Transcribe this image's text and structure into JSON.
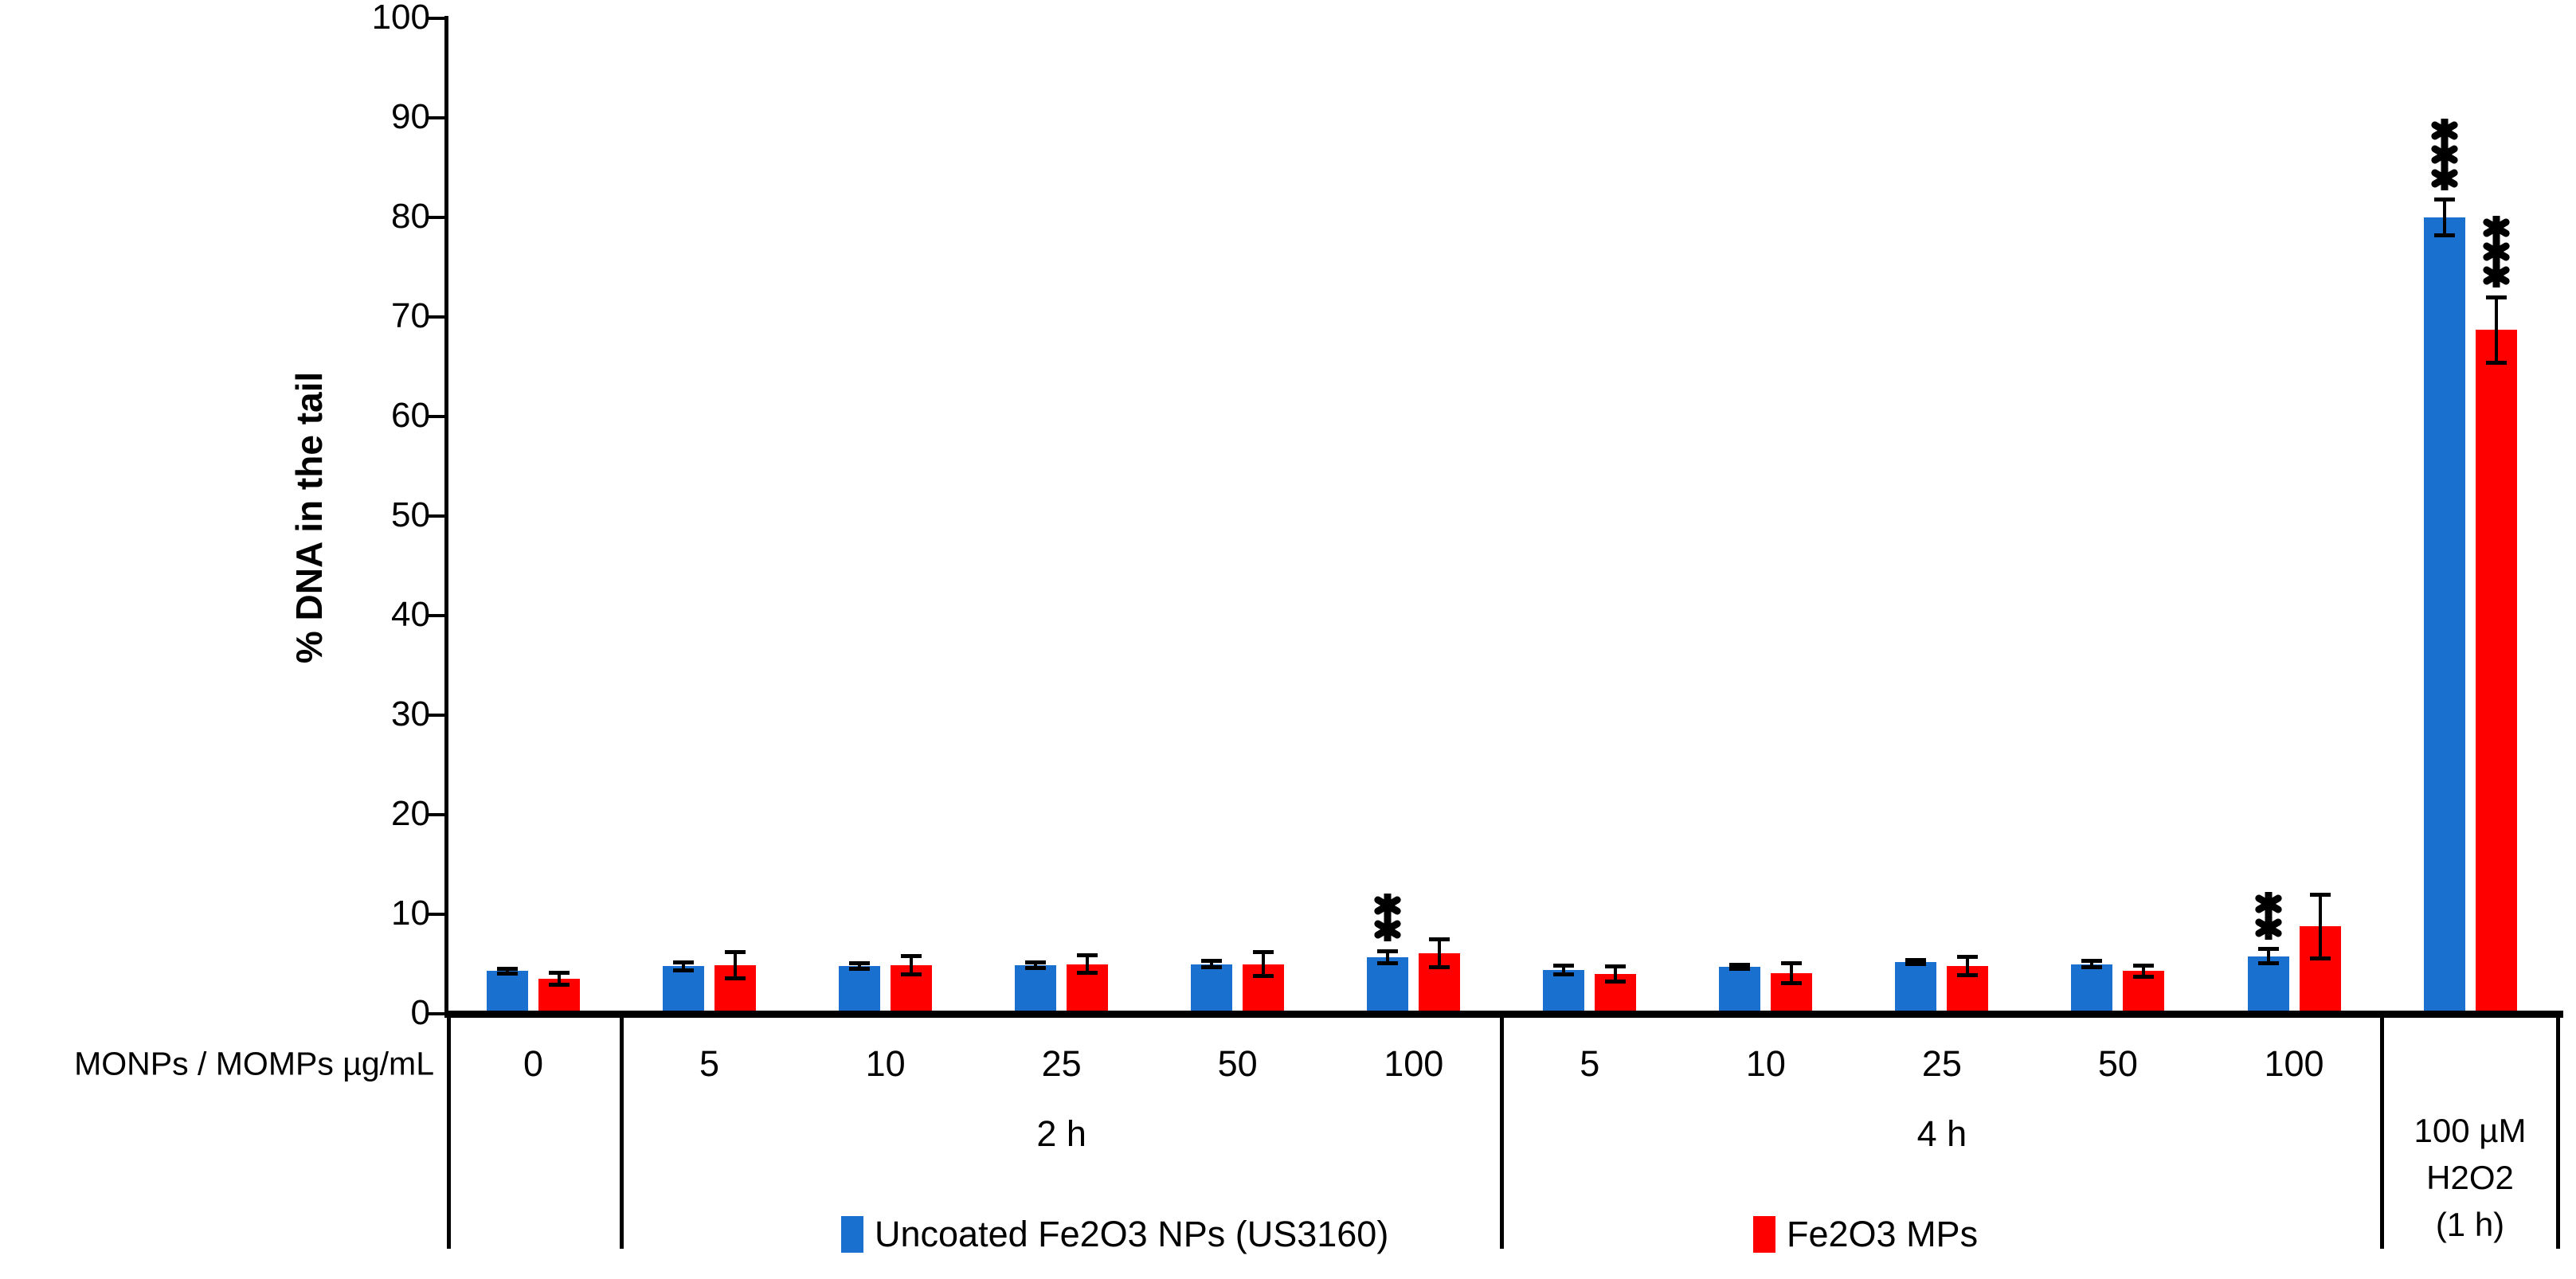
{
  "chart_data": {
    "type": "bar",
    "title": "",
    "ylabel": "% DNA in the tail",
    "xlabel": "MONPs / MOMPs µg/mL",
    "ylim": [
      0,
      100
    ],
    "ytick_step": 10,
    "ytick_labels": [
      "0",
      "10",
      "20",
      "30",
      "40",
      "50",
      "60",
      "70",
      "80",
      "90",
      "100"
    ],
    "grid": false,
    "legend_position": "bottom",
    "categories": [
      "0",
      "5",
      "10",
      "25",
      "50",
      "100",
      "5",
      "10",
      "25",
      "50",
      "100",
      ""
    ],
    "groups": [
      {
        "label": "",
        "from": 0,
        "to": 0
      },
      {
        "label": "2 h",
        "from": 1,
        "to": 5
      },
      {
        "label": "4 h",
        "from": 6,
        "to": 10
      },
      {
        "label": "100 µM H2O2 (1 h)",
        "label_lines": [
          "100 µM",
          "H2O2",
          "(1 h)"
        ],
        "from": 11,
        "to": 11,
        "boxed": true
      }
    ],
    "series": [
      {
        "name": "Uncoated Fe2O3 NPs (US3160)",
        "color": "#1A70CE",
        "values": [
          4.3,
          4.8,
          4.8,
          4.9,
          5.0,
          5.7,
          4.4,
          4.7,
          5.2,
          5.0,
          5.8,
          80.0
        ],
        "errors": [
          0.25,
          0.4,
          0.3,
          0.3,
          0.35,
          0.6,
          0.45,
          0.2,
          0.2,
          0.3,
          0.7,
          1.8
        ],
        "significance": [
          "",
          "",
          "",
          "",
          "",
          "**",
          "",
          "",
          "",
          "",
          "**",
          "***"
        ]
      },
      {
        "name": "Fe2O3 MPs",
        "color": "#FF0000",
        "values": [
          3.5,
          4.9,
          4.9,
          5.0,
          5.0,
          6.1,
          4.0,
          4.1,
          4.8,
          4.3,
          8.8,
          68.7
        ],
        "errors": [
          0.6,
          1.3,
          0.9,
          0.9,
          1.2,
          1.4,
          0.75,
          1.0,
          0.9,
          0.55,
          3.2,
          3.3
        ],
        "significance": [
          "",
          "",
          "",
          "",
          "",
          "",
          "",
          "",
          "",
          "",
          "",
          "***"
        ]
      }
    ],
    "axis_color": "#000000",
    "error_bar_color": "#000000"
  }
}
